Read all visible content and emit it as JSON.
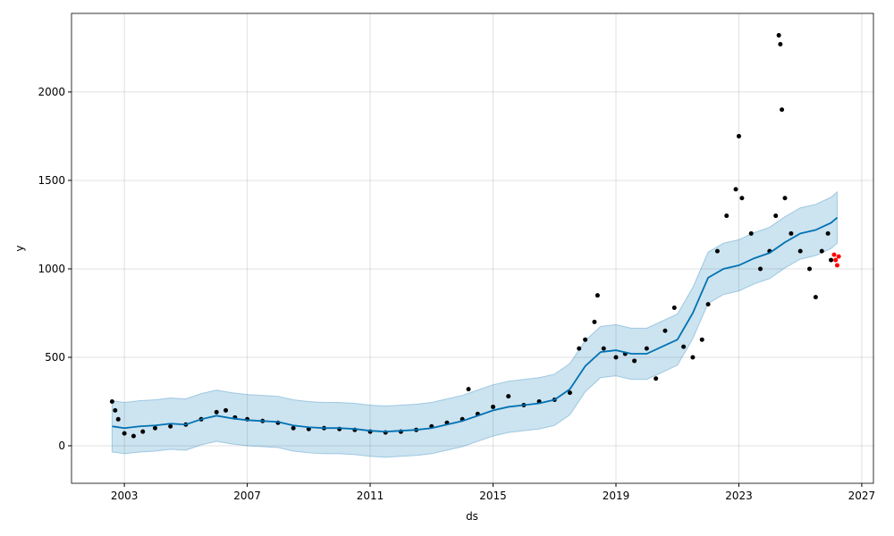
{
  "chart_data": {
    "type": "forecast",
    "x_label": "ds",
    "y_label": "y",
    "xlim": [
      2001.28,
      2027.38
    ],
    "ylim": [
      -212,
      2444
    ],
    "xticks": [
      2003,
      2007,
      2011,
      2015,
      2019,
      2023,
      2027
    ],
    "yticks": [
      0,
      500,
      1000,
      1500,
      2000
    ],
    "grid": true,
    "x": [
      2002.6,
      2003,
      2003.5,
      2004,
      2004.5,
      2005,
      2005.5,
      2006,
      2006.5,
      2007,
      2007.5,
      2008,
      2008.5,
      2009,
      2009.5,
      2010,
      2010.5,
      2011,
      2011.5,
      2012,
      2012.5,
      2013,
      2013.5,
      2014,
      2014.5,
      2015,
      2015.5,
      2016,
      2016.5,
      2017,
      2017.5,
      2018,
      2018.5,
      2019,
      2019.5,
      2020,
      2020.5,
      2021,
      2021.5,
      2022,
      2022.5,
      2023,
      2023.5,
      2024,
      2024.5,
      2025,
      2025.5,
      2026,
      2026.2
    ],
    "series": [
      {
        "color": "#0072b2",
        "values": [
          110,
          100,
          110,
          115,
          125,
          120,
          150,
          170,
          155,
          145,
          140,
          135,
          115,
          105,
          100,
          100,
          95,
          85,
          80,
          85,
          90,
          100,
          120,
          140,
          170,
          200,
          220,
          230,
          240,
          260,
          320,
          450,
          530,
          540,
          520,
          520,
          560,
          600,
          750,
          950,
          1000,
          1020,
          1060,
          1090,
          1150,
          1200,
          1220,
          1260,
          1290
        ]
      }
    ],
    "band": {
      "color": "#0072b2",
      "lower": [
        -35,
        -45,
        -35,
        -30,
        -20,
        -25,
        5,
        25,
        10,
        0,
        -5,
        -10,
        -30,
        -40,
        -45,
        -45,
        -50,
        -60,
        -65,
        -60,
        -55,
        -45,
        -25,
        -5,
        25,
        55,
        75,
        85,
        95,
        115,
        175,
        305,
        385,
        395,
        375,
        375,
        415,
        455,
        605,
        805,
        855,
        875,
        915,
        945,
        1005,
        1055,
        1075,
        1115,
        1145
      ],
      "upper": [
        255,
        245,
        255,
        260,
        270,
        265,
        295,
        315,
        300,
        290,
        285,
        280,
        260,
        250,
        245,
        245,
        240,
        230,
        225,
        230,
        235,
        245,
        265,
        285,
        315,
        345,
        365,
        375,
        385,
        405,
        465,
        595,
        675,
        685,
        665,
        665,
        705,
        745,
        895,
        1095,
        1145,
        1165,
        1205,
        1235,
        1295,
        1345,
        1365,
        1405,
        1435
      ]
    },
    "points": [
      {
        "color": "#000000",
        "x": [
          2002.6,
          2002.7,
          2002.8,
          2003,
          2003.3,
          2003.6,
          2004,
          2004.5,
          2005,
          2005.5,
          2006,
          2006.3,
          2006.6,
          2007,
          2007.5,
          2008,
          2008.5,
          2009,
          2009.5,
          2010,
          2010.5,
          2011,
          2011.5,
          2012,
          2012.5,
          2013,
          2013.5,
          2014,
          2014.2,
          2014.5,
          2015,
          2015.5,
          2016,
          2016.5,
          2017,
          2017.5,
          2017.8,
          2018,
          2018.3,
          2018.4,
          2018.6,
          2019,
          2019.3,
          2019.6,
          2020,
          2020.3,
          2020.6,
          2020.9,
          2021.2,
          2021.5,
          2021.8,
          2022,
          2022.3,
          2022.6,
          2022.9,
          2023,
          2023.1,
          2023.4,
          2023.7,
          2024,
          2024.2,
          2024.3,
          2024.35,
          2024.4,
          2024.5,
          2024.7,
          2025,
          2025.3,
          2025.5,
          2025.7,
          2025.9,
          2026
        ],
        "values": [
          250,
          200,
          150,
          70,
          55,
          80,
          100,
          110,
          120,
          150,
          190,
          200,
          160,
          150,
          140,
          130,
          100,
          95,
          100,
          95,
          90,
          80,
          75,
          80,
          90,
          110,
          130,
          150,
          320,
          180,
          220,
          280,
          230,
          250,
          260,
          300,
          550,
          600,
          700,
          850,
          550,
          500,
          520,
          480,
          550,
          380,
          650,
          780,
          560,
          500,
          600,
          800,
          1100,
          1300,
          1450,
          1750,
          1400,
          1200,
          1000,
          1100,
          1300,
          2320,
          2270,
          1900,
          1400,
          1200,
          1100,
          1000,
          840,
          1100,
          1200,
          1050
        ]
      },
      {
        "color": "#ff0000",
        "x": [
          2026.1,
          2026.15,
          2026.2,
          2026.25
        ],
        "values": [
          1080,
          1050,
          1020,
          1070
        ]
      }
    ]
  }
}
